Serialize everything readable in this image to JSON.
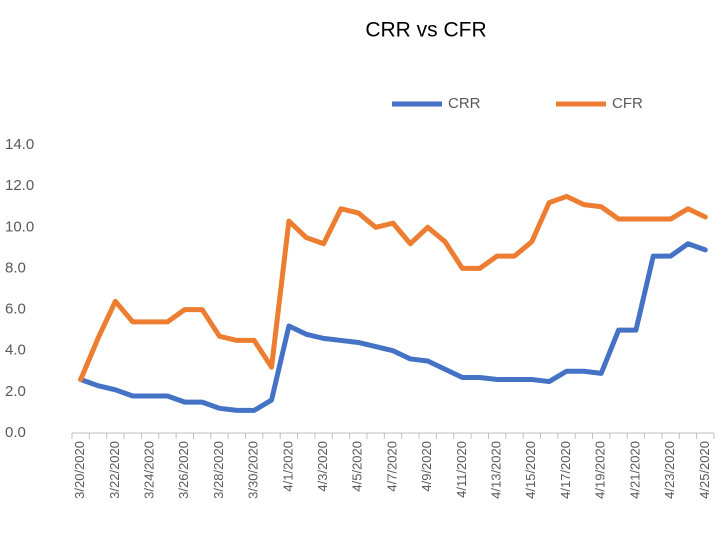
{
  "chart_data": {
    "type": "line",
    "title": "CRR vs CFR",
    "categories": [
      "3/20/2020",
      null,
      "3/22/2020",
      null,
      "3/24/2020",
      null,
      "3/26/2020",
      null,
      "3/28/2020",
      null,
      "3/30/2020",
      null,
      "4/1/2020",
      null,
      "4/3/2020",
      null,
      "4/5/2020",
      null,
      "4/7/2020",
      null,
      "4/9/2020",
      null,
      "4/11/2020",
      null,
      "4/13/2020",
      null,
      "4/15/2020",
      null,
      "4/17/2020",
      null,
      "4/19/2020",
      null,
      "4/21/2020",
      null,
      "4/23/2020",
      null,
      "4/25/2020"
    ],
    "series": [
      {
        "name": "CRR",
        "color": "#4472c4",
        "values": [
          2.6,
          2.3,
          2.1,
          1.8,
          1.8,
          1.8,
          1.5,
          1.5,
          1.2,
          1.1,
          1.1,
          1.6,
          5.2,
          4.8,
          4.6,
          4.5,
          4.4,
          4.2,
          4.0,
          3.6,
          3.5,
          3.1,
          2.7,
          2.7,
          2.6,
          2.6,
          2.6,
          2.5,
          3.0,
          3.0,
          2.9,
          5.0,
          5.0,
          8.6,
          8.6,
          9.2,
          8.9
        ]
      },
      {
        "name": "CFR",
        "color": "#ed7d31",
        "values": [
          2.6,
          4.6,
          6.4,
          5.4,
          5.4,
          5.4,
          6.0,
          6.0,
          4.7,
          4.5,
          4.5,
          3.2,
          10.3,
          9.5,
          9.2,
          10.9,
          10.7,
          10.0,
          10.2,
          9.2,
          10.0,
          9.3,
          8.0,
          8.0,
          8.6,
          8.6,
          9.3,
          11.2,
          11.5,
          11.1,
          11.0,
          10.4,
          10.4,
          10.4,
          10.4,
          10.9,
          10.5
        ]
      }
    ],
    "ylim": [
      0,
      14
    ],
    "yticks": [
      {
        "value": 0,
        "label": "0.0"
      },
      {
        "value": 2,
        "label": "2.0"
      },
      {
        "value": 4,
        "label": "4.0"
      },
      {
        "value": 6,
        "label": "6.0"
      },
      {
        "value": 8,
        "label": "8.0"
      },
      {
        "value": 10,
        "label": "10.0"
      },
      {
        "value": 12,
        "label": "12.0"
      },
      {
        "value": 14,
        "label": "14.0"
      }
    ],
    "grid": false,
    "legend": "top"
  }
}
